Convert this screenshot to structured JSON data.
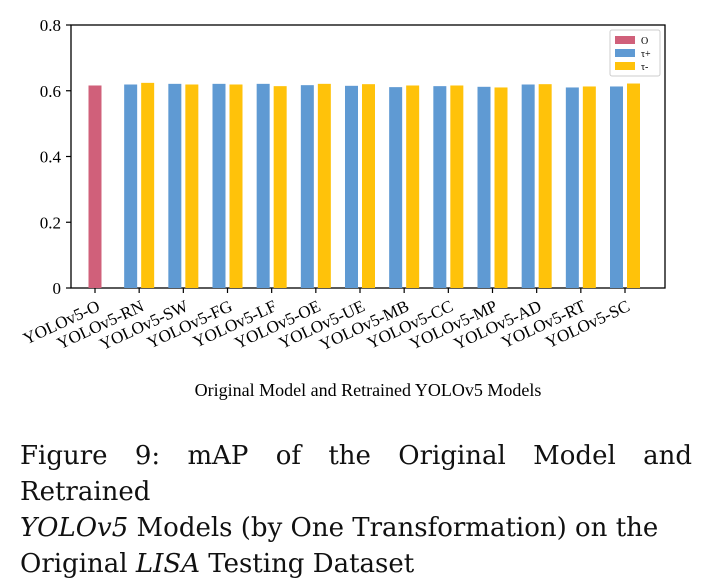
{
  "chart_data": {
    "type": "bar",
    "title": "",
    "xlabel": "Original Model and Retrained YOLOv5 Models",
    "ylabel": "",
    "ylim": [
      0,
      0.8
    ],
    "yticks": [
      "0",
      "0.2",
      "0.4",
      "0.6",
      "0.8"
    ],
    "yticks_values": [
      0,
      0.2,
      0.4,
      0.6,
      0.8
    ],
    "categories": [
      "YOLOv5-O",
      "YOLOv5-RN",
      "YOLOv5-SW",
      "YOLOv5-FG",
      "YOLOv5-LF",
      "YOLOv5-OE",
      "YOLOv5-UE",
      "YOLOv5-MB",
      "YOLOv5-CC",
      "YOLOv5-MP",
      "YOLOv5-AD",
      "YOLOv5-RT",
      "YOLOv5-SC"
    ],
    "series": [
      {
        "name": "O",
        "color": "#D0607A",
        "values": [
          0.616,
          null,
          null,
          null,
          null,
          null,
          null,
          null,
          null,
          null,
          null,
          null,
          null
        ]
      },
      {
        "name": "τ+",
        "color": "#5F9AD3",
        "values": [
          null,
          0.619,
          0.621,
          0.621,
          0.621,
          0.617,
          0.615,
          0.611,
          0.614,
          0.612,
          0.619,
          0.61,
          0.613
        ]
      },
      {
        "name": "τ-",
        "color": "#FFC20A",
        "values": [
          null,
          0.624,
          0.619,
          0.619,
          0.614,
          0.621,
          0.62,
          0.616,
          0.616,
          0.61,
          0.62,
          0.613,
          0.622
        ]
      }
    ],
    "legend_position": "top-right"
  },
  "caption": {
    "line1": "Figure 9: mAP of the Original Model and Retrained",
    "line2_italic": "YOLOv5",
    "line2_rest": " Models (by One Transformation) on the",
    "line3_start": "Original ",
    "line3_italic": "LISA",
    "line3_rest": " Testing Dataset"
  }
}
